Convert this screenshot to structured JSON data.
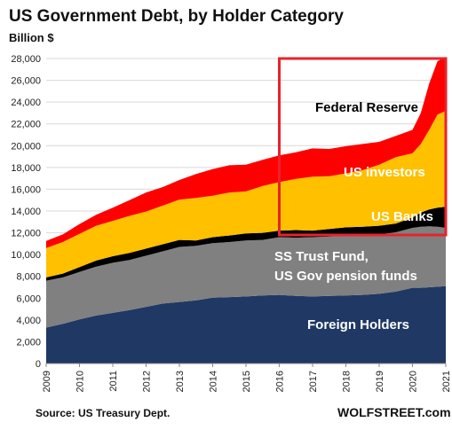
{
  "chart_data": {
    "type": "area",
    "title": "US Government Debt, by Holder Category",
    "ylabel": "Billion $",
    "xlabel": "",
    "ylim": [
      0,
      28000
    ],
    "xlim": [
      2009,
      2021
    ],
    "y_ticks": [
      "0",
      "2,000",
      "4,000",
      "6,000",
      "8,000",
      "10,000",
      "12,000",
      "14,000",
      "16,000",
      "18,000",
      "20,000",
      "22,000",
      "24,000",
      "26,000",
      "28,000"
    ],
    "x_ticks": [
      "2009",
      "2010",
      "2011",
      "2012",
      "2013",
      "2014",
      "2015",
      "2016",
      "2017",
      "2018",
      "2019",
      "2020",
      "2021"
    ],
    "stacked": true,
    "legend": "none",
    "x": [
      2009,
      2009.5,
      2010,
      2010.5,
      2011,
      2011.5,
      2012,
      2012.5,
      2013,
      2013.5,
      2014,
      2014.5,
      2015,
      2015.5,
      2016,
      2016.5,
      2017,
      2017.5,
      2018,
      2018.5,
      2019,
      2019.5,
      2020,
      2020.25,
      2020.5,
      2020.75,
      2021
    ],
    "series": [
      {
        "name": "Foreign Holders",
        "color": "#203864",
        "values": [
          3300,
          3650,
          4050,
          4400,
          4650,
          4900,
          5200,
          5500,
          5650,
          5800,
          6050,
          6100,
          6150,
          6250,
          6300,
          6200,
          6150,
          6200,
          6250,
          6300,
          6400,
          6600,
          6950,
          6950,
          7000,
          7050,
          7100
        ]
      },
      {
        "name": "SS Trust Fund, US Gov pension funds",
        "color": "#808080",
        "values": [
          4300,
          4250,
          4350,
          4500,
          4600,
          4600,
          4700,
          4800,
          5050,
          5000,
          5000,
          5050,
          5150,
          5100,
          5300,
          5350,
          5450,
          5450,
          5500,
          5500,
          5450,
          5450,
          5500,
          5600,
          5600,
          5500,
          5350
        ]
      },
      {
        "name": "US Banks",
        "color": "#000000",
        "values": [
          300,
          350,
          450,
          550,
          600,
          650,
          650,
          650,
          650,
          500,
          550,
          600,
          650,
          650,
          600,
          700,
          600,
          700,
          750,
          750,
          800,
          800,
          950,
          1300,
          1550,
          1750,
          1950
        ]
      },
      {
        "name": "US investors",
        "color": "#FFC000",
        "values": [
          2700,
          2900,
          3050,
          3200,
          3250,
          3400,
          3400,
          3550,
          3700,
          3900,
          3800,
          3950,
          3850,
          4300,
          4450,
          4700,
          4950,
          4850,
          4950,
          5200,
          5600,
          6100,
          5900,
          6300,
          7300,
          8550,
          8800
        ]
      },
      {
        "name": "Federal Reserve",
        "color": "#FF0000",
        "values": [
          650,
          700,
          900,
          1000,
          1200,
          1450,
          1750,
          1700,
          1800,
          2200,
          2450,
          2500,
          2450,
          2400,
          2450,
          2450,
          2600,
          2500,
          2500,
          2400,
          2100,
          1950,
          2150,
          2850,
          4250,
          4900,
          4950
        ]
      }
    ],
    "annotations": [
      "Federal Reserve",
      "US investors",
      "US Banks",
      "SS Trust Fund,",
      "US Gov pension funds",
      "Foreign Holders"
    ],
    "highlight_box": {
      "x_from": 2016,
      "x_to": 2021,
      "y_from": 11800,
      "y_to": 28000,
      "color": "#E8232D"
    },
    "source": "Source: US Treasury Dept.",
    "brand": "WOLFSTREET.com"
  }
}
